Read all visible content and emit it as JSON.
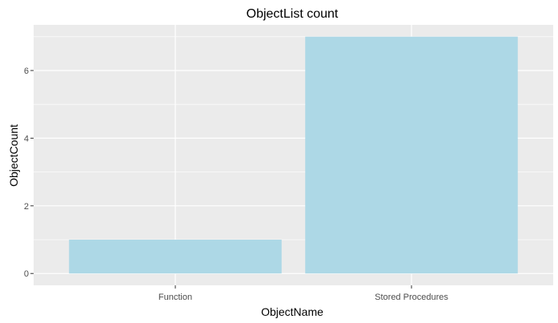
{
  "chart_data": {
    "type": "bar",
    "title": "ObjectList count",
    "xlabel": "ObjectName",
    "ylabel": "ObjectCount",
    "categories": [
      "Function",
      "Stored Procedures"
    ],
    "values": [
      1,
      7
    ],
    "ylim": [
      -0.35,
      7.35
    ],
    "yticks": [
      0,
      2,
      4,
      6
    ],
    "ytick_labels": [
      "0",
      "2",
      "4",
      "6"
    ],
    "grid": true,
    "colors": {
      "bar": "#add8e6",
      "panel_background": "#ebebeb",
      "grid": "#ffffff",
      "tick": "#333333"
    }
  }
}
